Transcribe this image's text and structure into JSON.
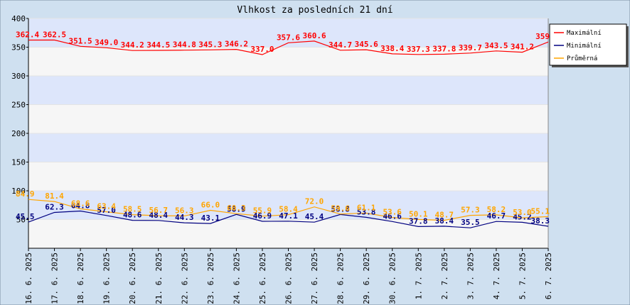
{
  "chart_data": {
    "type": "line",
    "title": "Vlhkost za posledních 21 dní",
    "xlabel": "",
    "ylabel": "",
    "ylim": [
      0,
      400
    ],
    "yticks": [
      50,
      100,
      150,
      200,
      250,
      300,
      350,
      400
    ],
    "ytick_labels": [
      "50",
      "100",
      "150",
      "200",
      "250",
      "300",
      "350",
      "400"
    ],
    "categories": [
      "16. 6. 2025",
      "17. 6. 2025",
      "18. 6. 2025",
      "19. 6. 2025",
      "20. 6. 2025",
      "21. 6. 2025",
      "22. 6. 2025",
      "23. 6. 2025",
      "24. 6. 2025",
      "25. 6. 2025",
      "26. 6. 2025",
      "27. 6. 2025",
      "28. 6. 2025",
      "29. 6. 2025",
      "30. 6. 2025",
      "1. 7. 2025",
      "2. 7. 2025",
      "3. 7. 2025",
      "4. 7. 2025",
      "5. 7. 2025",
      "6. 7. 2025"
    ],
    "grid": true,
    "legend_position": "top-right",
    "series": [
      {
        "name": "Maximální",
        "color": "#ff0000",
        "values": [
          362.4,
          362.5,
          351.5,
          349.0,
          344.2,
          344.5,
          344.8,
          345.3,
          346.2,
          337.0,
          357.6,
          360.6,
          344.7,
          345.6,
          338.4,
          337.3,
          337.8,
          339.7,
          343.5,
          341.2,
          359.0
        ]
      },
      {
        "name": "Minimální",
        "color": "#000080",
        "values": [
          45.5,
          62.3,
          64.8,
          57.0,
          48.6,
          48.4,
          44.3,
          43.1,
          58.9,
          46.9,
          47.1,
          45.4,
          58.8,
          53.8,
          46.6,
          37.8,
          38.4,
          35.5,
          46.7,
          45.2,
          38.3
        ]
      },
      {
        "name": "Průměrná",
        "color": "#ffa500",
        "values": [
          84.9,
          81.4,
          68.6,
          63.4,
          58.5,
          56.7,
          56.3,
          66.0,
          60.3,
          55.9,
          58.4,
          72.0,
          59.6,
          61.1,
          53.6,
          50.1,
          48.7,
          57.3,
          58.2,
          53.0,
          55.1
        ]
      }
    ],
    "value_labels": [
      [
        "362.4",
        "362.5",
        "351.5",
        "349.0",
        "344.2",
        "344.5",
        "344.8",
        "345.3",
        "346.2",
        "337.0",
        "357.6",
        "360.6",
        "344.7",
        "345.6",
        "338.4",
        "337.3",
        "337.8",
        "339.7",
        "343.5",
        "341.2",
        "359"
      ],
      [
        "45.5",
        "62.3",
        "64.8",
        "57.0",
        "48.6",
        "48.4",
        "44.3",
        "43.1",
        "58.9",
        "46.9",
        "47.1",
        "45.4",
        "58.8",
        "53.8",
        "46.6",
        "37.8",
        "38.4",
        "35.5",
        "46.7",
        "45.2",
        "38.3"
      ],
      [
        "84.9",
        "81.4",
        "68.6",
        "63.4",
        "58.5",
        "56.7",
        "56.3",
        "66.0",
        "60.3",
        "55.9",
        "58.4",
        "72.0",
        "59.6",
        "61.1",
        "53.6",
        "50.1",
        "48.7",
        "57.3",
        "58.2",
        "53.0",
        "55.1"
      ]
    ]
  }
}
